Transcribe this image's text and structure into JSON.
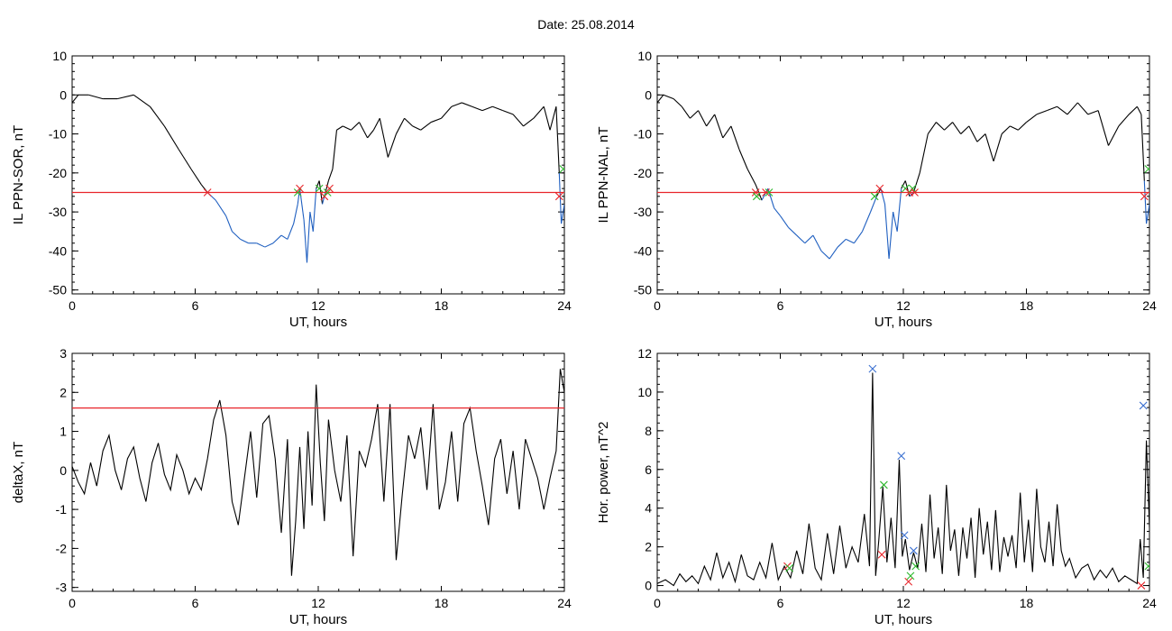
{
  "header": {
    "date_label": "Date:  25.08.2014"
  },
  "colors": {
    "trace": "#000000",
    "below_threshold": "#1f5fc0",
    "threshold": "#e8252a",
    "marker_red": "#e8252a",
    "marker_green": "#2db82d",
    "marker_blue": "#3a6fd0"
  },
  "chart_data": [
    {
      "id": "sor",
      "type": "line",
      "title": "",
      "xlabel": "UT, hours",
      "ylabel": "IL PPN-SOR, nT",
      "xlim": [
        0,
        24
      ],
      "ylim": [
        -51,
        10
      ],
      "xticks": [
        0,
        6,
        12,
        18,
        24
      ],
      "xtick_labels": [
        "0",
        "6",
        "12",
        "18",
        "24"
      ],
      "yticks": [
        10,
        0,
        -10,
        -20,
        -30,
        -40,
        -50
      ],
      "ytick_labels": [
        "10",
        "0",
        "-10",
        "-20",
        "-30",
        "-40",
        "-50"
      ],
      "threshold": -25,
      "series": [
        {
          "x": [
            0,
            0.3,
            0.8,
            1.5,
            2.2,
            3.0,
            3.8,
            4.5,
            5.2,
            5.8,
            6.3,
            6.6,
            7.0,
            7.5,
            7.8,
            8.2,
            8.6,
            9.0,
            9.4,
            9.8,
            10.2,
            10.5,
            10.8,
            11.0,
            11.1,
            11.3,
            11.45,
            11.6,
            11.75,
            11.9,
            12.05,
            12.2,
            12.35,
            12.5,
            12.7,
            12.9,
            13.2,
            13.6,
            14.0,
            14.4,
            14.7,
            15.0,
            15.4,
            15.8,
            16.2,
            16.6,
            17.0,
            17.5,
            18.0,
            18.5,
            19.0,
            19.5,
            20.0,
            20.5,
            21.0,
            21.5,
            22.0,
            22.5,
            23.0,
            23.3,
            23.6,
            23.75,
            23.85,
            24.0
          ],
          "y": [
            -2,
            0,
            0,
            -1,
            -1,
            0,
            -3,
            -8,
            -14,
            -19,
            -23,
            -25,
            -27,
            -31,
            -35,
            -37,
            -38,
            -38,
            -39,
            -38,
            -36,
            -37,
            -33,
            -28,
            -24,
            -32,
            -43,
            -30,
            -35,
            -24,
            -22,
            -28,
            -25,
            -22,
            -19,
            -9,
            -8,
            -9,
            -7,
            -11,
            -9,
            -6,
            -16,
            -10,
            -6,
            -8,
            -9,
            -7,
            -6,
            -3,
            -2,
            -3,
            -4,
            -3,
            -4,
            -5,
            -8,
            -6,
            -3,
            -9,
            -3,
            -20,
            -33,
            -28
          ]
        }
      ],
      "markers": [
        {
          "x": 6.6,
          "y": -25,
          "color": "red"
        },
        {
          "x": 11.0,
          "y": -25,
          "color": "green"
        },
        {
          "x": 11.1,
          "y": -24,
          "color": "red"
        },
        {
          "x": 12.05,
          "y": -24,
          "color": "green"
        },
        {
          "x": 12.3,
          "y": -26,
          "color": "red"
        },
        {
          "x": 12.45,
          "y": -25,
          "color": "green"
        },
        {
          "x": 12.55,
          "y": -24,
          "color": "red"
        },
        {
          "x": 23.75,
          "y": -26,
          "color": "red"
        },
        {
          "x": 23.95,
          "y": -19,
          "color": "green"
        }
      ]
    },
    {
      "id": "nal",
      "type": "line",
      "title": "",
      "xlabel": "UT, hours",
      "ylabel": "IL PPN-NAL, nT",
      "xlim": [
        0,
        24
      ],
      "ylim": [
        -51,
        10
      ],
      "xticks": [
        0,
        6,
        12,
        18,
        24
      ],
      "xtick_labels": [
        "0",
        "6",
        "12",
        "18",
        "24"
      ],
      "yticks": [
        10,
        0,
        -10,
        -20,
        -30,
        -40,
        -50
      ],
      "ytick_labels": [
        "10",
        "0",
        "-10",
        "-20",
        "-30",
        "-40",
        "-50"
      ],
      "threshold": -25,
      "series": [
        {
          "x": [
            0,
            0.3,
            0.8,
            1.2,
            1.6,
            2.0,
            2.4,
            2.8,
            3.2,
            3.6,
            4.0,
            4.4,
            4.8,
            5.1,
            5.4,
            5.7,
            6.0,
            6.4,
            6.8,
            7.2,
            7.6,
            8.0,
            8.4,
            8.8,
            9.2,
            9.6,
            10.0,
            10.4,
            10.7,
            10.9,
            11.1,
            11.3,
            11.5,
            11.7,
            11.9,
            12.1,
            12.3,
            12.5,
            12.8,
            13.2,
            13.6,
            14.0,
            14.4,
            14.8,
            15.2,
            15.6,
            16.0,
            16.4,
            16.8,
            17.2,
            17.6,
            18.0,
            18.5,
            19.0,
            19.5,
            20.0,
            20.5,
            21.0,
            21.5,
            22.0,
            22.5,
            23.0,
            23.4,
            23.6,
            23.75,
            23.85,
            24.0
          ],
          "y": [
            -2,
            0,
            -1,
            -3,
            -6,
            -4,
            -8,
            -5,
            -11,
            -8,
            -14,
            -19,
            -23,
            -27,
            -24,
            -29,
            -31,
            -34,
            -36,
            -38,
            -36,
            -40,
            -42,
            -39,
            -37,
            -38,
            -35,
            -30,
            -26,
            -24,
            -28,
            -42,
            -30,
            -35,
            -24,
            -22,
            -26,
            -25,
            -20,
            -10,
            -7,
            -9,
            -7,
            -10,
            -8,
            -12,
            -10,
            -17,
            -10,
            -8,
            -9,
            -7,
            -5,
            -4,
            -3,
            -5,
            -2,
            -5,
            -4,
            -13,
            -8,
            -5,
            -3,
            -5,
            -22,
            -33,
            -28
          ]
        }
      ],
      "markers": [
        {
          "x": 4.8,
          "y": -25,
          "color": "red"
        },
        {
          "x": 4.85,
          "y": -26,
          "color": "green"
        },
        {
          "x": 5.3,
          "y": -25,
          "color": "red"
        },
        {
          "x": 5.45,
          "y": -25,
          "color": "green"
        },
        {
          "x": 10.6,
          "y": -26,
          "color": "green"
        },
        {
          "x": 10.85,
          "y": -24,
          "color": "red"
        },
        {
          "x": 12.1,
          "y": -24,
          "color": "green"
        },
        {
          "x": 12.3,
          "y": -25,
          "color": "red"
        },
        {
          "x": 12.45,
          "y": -24,
          "color": "green"
        },
        {
          "x": 12.55,
          "y": -25,
          "color": "red"
        },
        {
          "x": 23.75,
          "y": -26,
          "color": "red"
        },
        {
          "x": 23.95,
          "y": -19,
          "color": "green"
        }
      ]
    },
    {
      "id": "deltax",
      "type": "line",
      "title": "",
      "xlabel": "UT, hours",
      "ylabel": "deltaX, nT",
      "xlim": [
        0,
        24
      ],
      "ylim": [
        -3.1,
        3
      ],
      "xticks": [
        0,
        6,
        12,
        18,
        24
      ],
      "xtick_labels": [
        "0",
        "6",
        "12",
        "18",
        "24"
      ],
      "yticks": [
        3,
        2,
        1,
        0,
        -1,
        -2,
        -3
      ],
      "ytick_labels": [
        "3",
        "2",
        "1",
        "0",
        "-1",
        "-2",
        "-3"
      ],
      "threshold": 1.6,
      "series": [
        {
          "x": [
            0,
            0.3,
            0.6,
            0.9,
            1.2,
            1.5,
            1.8,
            2.1,
            2.4,
            2.7,
            3.0,
            3.3,
            3.6,
            3.9,
            4.2,
            4.5,
            4.8,
            5.1,
            5.4,
            5.7,
            6.0,
            6.3,
            6.6,
            6.9,
            7.2,
            7.5,
            7.8,
            8.1,
            8.4,
            8.7,
            9.0,
            9.3,
            9.6,
            9.9,
            10.2,
            10.5,
            10.7,
            10.9,
            11.1,
            11.3,
            11.5,
            11.7,
            11.9,
            12.1,
            12.3,
            12.5,
            12.8,
            13.1,
            13.4,
            13.7,
            14.0,
            14.3,
            14.6,
            14.9,
            15.2,
            15.5,
            15.8,
            16.1,
            16.4,
            16.7,
            17.0,
            17.3,
            17.6,
            17.9,
            18.2,
            18.5,
            18.8,
            19.1,
            19.4,
            19.7,
            20.0,
            20.3,
            20.6,
            20.9,
            21.2,
            21.5,
            21.8,
            22.1,
            22.4,
            22.7,
            23.0,
            23.3,
            23.6,
            23.8,
            24.0
          ],
          "y": [
            0.1,
            -0.3,
            -0.6,
            0.2,
            -0.4,
            0.5,
            0.9,
            0.0,
            -0.5,
            0.3,
            0.6,
            -0.2,
            -0.8,
            0.2,
            0.7,
            -0.1,
            -0.5,
            0.4,
            0.0,
            -0.6,
            -0.2,
            -0.5,
            0.3,
            1.3,
            1.8,
            0.9,
            -0.8,
            -1.4,
            -0.2,
            1.0,
            -0.7,
            1.2,
            1.4,
            0.3,
            -1.6,
            0.8,
            -2.7,
            -1.3,
            0.6,
            -1.5,
            1.0,
            -0.9,
            2.2,
            0.2,
            -1.3,
            1.3,
            0.0,
            -0.8,
            0.9,
            -2.2,
            0.5,
            0.1,
            0.8,
            1.7,
            -0.8,
            1.7,
            -2.3,
            -0.6,
            0.9,
            0.3,
            1.1,
            -0.5,
            1.7,
            -1.0,
            -0.3,
            1.0,
            -0.8,
            1.2,
            1.6,
            0.5,
            -0.4,
            -1.4,
            0.3,
            0.8,
            -0.6,
            0.5,
            -1.0,
            0.8,
            0.3,
            -0.2,
            -1.0,
            -0.2,
            0.5,
            2.6,
            2.0
          ]
        }
      ],
      "markers": []
    },
    {
      "id": "power",
      "type": "line",
      "title": "",
      "xlabel": "UT, hours",
      "ylabel": "Hor. power, nT^2",
      "xlim": [
        0,
        24
      ],
      "ylim": [
        -0.3,
        12
      ],
      "xticks": [
        0,
        6,
        12,
        18,
        24
      ],
      "xtick_labels": [
        "0",
        "6",
        "12",
        "18",
        "24"
      ],
      "yticks": [
        12,
        10,
        8,
        6,
        4,
        2,
        0
      ],
      "ytick_labels": [
        "12",
        "10",
        "8",
        "6",
        "4",
        "2",
        "0"
      ],
      "series": [
        {
          "x": [
            0,
            0.4,
            0.8,
            1.1,
            1.4,
            1.7,
            2.0,
            2.3,
            2.6,
            2.9,
            3.2,
            3.5,
            3.8,
            4.1,
            4.4,
            4.7,
            5.0,
            5.3,
            5.6,
            5.9,
            6.2,
            6.5,
            6.8,
            7.1,
            7.4,
            7.7,
            8.0,
            8.3,
            8.6,
            8.9,
            9.2,
            9.5,
            9.8,
            10.1,
            10.35,
            10.5,
            10.65,
            10.8,
            11.0,
            11.2,
            11.4,
            11.6,
            11.8,
            11.95,
            12.1,
            12.3,
            12.5,
            12.7,
            12.9,
            13.1,
            13.3,
            13.5,
            13.7,
            13.9,
            14.1,
            14.3,
            14.5,
            14.7,
            14.9,
            15.1,
            15.3,
            15.5,
            15.7,
            15.9,
            16.1,
            16.3,
            16.5,
            16.7,
            16.9,
            17.1,
            17.3,
            17.5,
            17.7,
            17.9,
            18.1,
            18.3,
            18.5,
            18.7,
            18.9,
            19.1,
            19.3,
            19.5,
            19.7,
            19.9,
            20.1,
            20.4,
            20.7,
            21.0,
            21.3,
            21.6,
            21.9,
            22.2,
            22.5,
            22.8,
            23.1,
            23.4,
            23.55,
            23.7,
            23.85,
            24.0
          ],
          "y": [
            0.1,
            0.3,
            0.0,
            0.6,
            0.2,
            0.5,
            0.1,
            1.0,
            0.3,
            1.7,
            0.4,
            1.2,
            0.2,
            1.6,
            0.5,
            0.3,
            1.2,
            0.4,
            2.2,
            0.3,
            1.0,
            0.4,
            1.8,
            0.6,
            3.2,
            0.9,
            0.3,
            2.7,
            0.6,
            3.1,
            0.9,
            2.0,
            1.2,
            3.7,
            1.0,
            11.0,
            0.5,
            2.3,
            5.1,
            1.2,
            3.5,
            0.9,
            6.5,
            1.5,
            2.4,
            0.8,
            1.7,
            0.9,
            3.2,
            0.7,
            4.7,
            1.4,
            3.0,
            0.6,
            5.2,
            1.8,
            2.9,
            0.5,
            3.0,
            1.4,
            3.5,
            0.4,
            4.0,
            1.6,
            3.3,
            0.8,
            3.9,
            0.7,
            2.5,
            1.5,
            2.6,
            0.9,
            4.8,
            1.2,
            3.4,
            0.7,
            5.0,
            2.0,
            1.2,
            3.3,
            1.0,
            4.2,
            1.8,
            1.0,
            1.4,
            0.4,
            0.9,
            1.1,
            0.3,
            0.8,
            0.4,
            0.9,
            0.2,
            0.5,
            0.3,
            0.1,
            2.4,
            0.4,
            7.5,
            3.0
          ]
        }
      ],
      "markers": [
        {
          "x": 6.35,
          "y": 1.0,
          "color": "red"
        },
        {
          "x": 6.45,
          "y": 0.9,
          "color": "green"
        },
        {
          "x": 10.5,
          "y": 11.2,
          "color": "blue"
        },
        {
          "x": 10.95,
          "y": 1.6,
          "color": "red"
        },
        {
          "x": 11.05,
          "y": 5.2,
          "color": "green"
        },
        {
          "x": 11.9,
          "y": 6.7,
          "color": "blue"
        },
        {
          "x": 12.05,
          "y": 2.6,
          "color": "blue"
        },
        {
          "x": 12.25,
          "y": 0.2,
          "color": "red"
        },
        {
          "x": 12.35,
          "y": 0.5,
          "color": "green"
        },
        {
          "x": 12.5,
          "y": 1.8,
          "color": "blue"
        },
        {
          "x": 12.6,
          "y": 1.0,
          "color": "green"
        },
        {
          "x": 23.6,
          "y": 0.0,
          "color": "red"
        },
        {
          "x": 23.7,
          "y": 9.3,
          "color": "blue"
        },
        {
          "x": 23.95,
          "y": 1.0,
          "color": "green"
        }
      ]
    }
  ]
}
